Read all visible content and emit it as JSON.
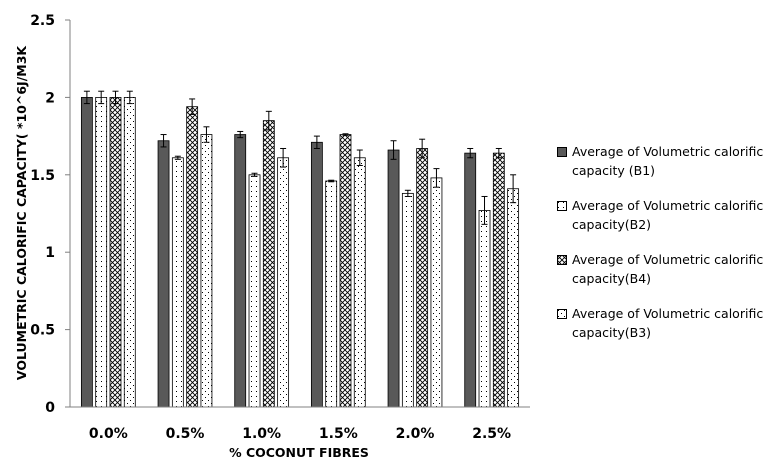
{
  "chart_data": {
    "type": "bar",
    "xlabel": "% COCONUT FIBRES",
    "ylabel": "VOLUMETRIC CALORIFIC CAPACITY( *10^6J/M3K",
    "ylim": [
      0,
      2.5
    ],
    "y_ticks": [
      "0",
      "0.5",
      "1",
      "1.5",
      "2",
      "2.5"
    ],
    "categories": [
      "0.0%",
      "0.5%",
      "1.0%",
      "1.5%",
      "2.0%",
      "2.5%"
    ],
    "grid": false,
    "legend_position": "right",
    "series": [
      {
        "name": "Average of Volumetric calorific capacity (B1)",
        "pattern": "solid",
        "values": [
          2.0,
          1.72,
          1.76,
          1.71,
          1.66,
          1.64
        ],
        "errors": [
          0.04,
          0.04,
          0.02,
          0.04,
          0.06,
          0.03
        ]
      },
      {
        "name": "Average of Volumetric calorific capacity(B2)",
        "pattern": "dots",
        "values": [
          2.0,
          1.61,
          1.5,
          1.46,
          1.38,
          1.27
        ],
        "errors": [
          0.04,
          0.01,
          0.01,
          0.005,
          0.02,
          0.09
        ]
      },
      {
        "name": "Average of Volumetric calorific capacity(B4)",
        "pattern": "crosshatch",
        "values": [
          2.0,
          1.94,
          1.85,
          1.76,
          1.67,
          1.64
        ],
        "errors": [
          0.04,
          0.05,
          0.06,
          0.005,
          0.06,
          0.03
        ]
      },
      {
        "name": "Average of Volumetric calorific capacity(B3)",
        "pattern": "dots-light",
        "values": [
          2.0,
          1.76,
          1.61,
          1.61,
          1.48,
          1.41
        ],
        "errors": [
          0.04,
          0.05,
          0.06,
          0.05,
          0.06,
          0.09
        ]
      }
    ],
    "colors": {
      "solid_fill": "#595959",
      "outline": "#000000",
      "pattern": "#000000"
    }
  }
}
